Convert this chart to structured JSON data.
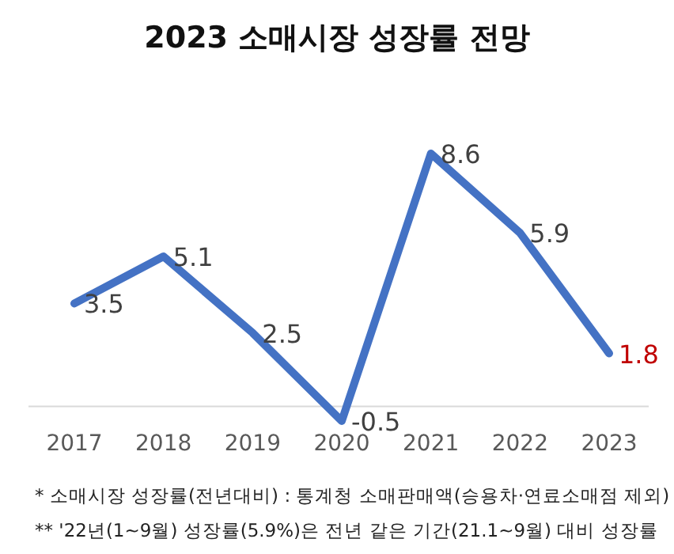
{
  "chart_data": {
    "type": "line",
    "title": "2023 소매시장 성장률 전망",
    "categories": [
      "2017",
      "2018",
      "2019",
      "2020",
      "2021",
      "2022",
      "2023"
    ],
    "series": [
      {
        "color": "#4472c4",
        "values": [
          3.5,
          5.1,
          2.5,
          -0.5,
          8.6,
          5.9,
          1.8
        ]
      }
    ],
    "data_labels": true,
    "marker": "none",
    "line_style": "solid",
    "annotations": [
      "* 소매시장 성장률(전년대비) : 통계청 소매판매액(승용차·연료소매점 제외)",
      "** '22년(1~9월) 성장률(5.9%)은 전년 같은 기간(21.1~9월) 대비 성장률"
    ]
  }
}
